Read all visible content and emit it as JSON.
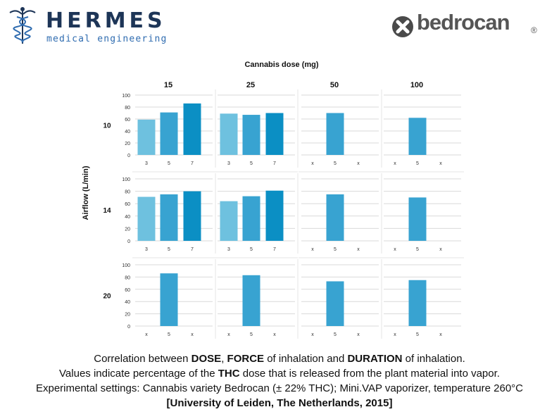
{
  "branding": {
    "hermes_title": "HERMES",
    "hermes_subtitle": "medical engineering",
    "bedrocan_name": "bedrocan",
    "registered_mark": "®"
  },
  "chart_data": {
    "type": "bar",
    "title": "Cannabis dose (mg)",
    "ylabel": "Airflow (L/min)",
    "ylim": [
      0,
      100
    ],
    "yticks": [
      0,
      20,
      40,
      60,
      80,
      100
    ],
    "grid": true,
    "columns": [
      "15",
      "25",
      "50",
      "100"
    ],
    "rows": [
      "10",
      "14",
      "20"
    ],
    "series_colors": [
      "#6ec1df",
      "#38a3d1",
      "#0b8fc4"
    ],
    "panels": [
      {
        "row": "10",
        "col": "15",
        "categories": [
          "3",
          "5",
          "7"
        ],
        "values": [
          59,
          71,
          86
        ]
      },
      {
        "row": "10",
        "col": "25",
        "categories": [
          "3",
          "5",
          "7"
        ],
        "values": [
          69,
          67,
          70
        ]
      },
      {
        "row": "10",
        "col": "50",
        "categories": [
          "x",
          "5",
          "x"
        ],
        "values": [
          null,
          70,
          null
        ]
      },
      {
        "row": "10",
        "col": "100",
        "categories": [
          "x",
          "5",
          "x"
        ],
        "values": [
          null,
          62,
          null
        ]
      },
      {
        "row": "14",
        "col": "15",
        "categories": [
          "3",
          "5",
          "7"
        ],
        "values": [
          71,
          75,
          80
        ]
      },
      {
        "row": "14",
        "col": "25",
        "categories": [
          "3",
          "5",
          "7"
        ],
        "values": [
          64,
          72,
          81
        ]
      },
      {
        "row": "14",
        "col": "50",
        "categories": [
          "x",
          "5",
          "x"
        ],
        "values": [
          null,
          75,
          null
        ]
      },
      {
        "row": "14",
        "col": "100",
        "categories": [
          "x",
          "5",
          "x"
        ],
        "values": [
          null,
          70,
          null
        ]
      },
      {
        "row": "20",
        "col": "15",
        "categories": [
          "x",
          "5",
          "x"
        ],
        "values": [
          null,
          86,
          null
        ]
      },
      {
        "row": "20",
        "col": "25",
        "categories": [
          "x",
          "5",
          "x"
        ],
        "values": [
          null,
          83,
          null
        ]
      },
      {
        "row": "20",
        "col": "50",
        "categories": [
          "x",
          "5",
          "x"
        ],
        "values": [
          null,
          73,
          null
        ]
      },
      {
        "row": "20",
        "col": "100",
        "categories": [
          "x",
          "5",
          "x"
        ],
        "values": [
          null,
          75,
          null
        ]
      }
    ]
  },
  "caption": {
    "line1": {
      "part1": "Correlation between ",
      "dose": "DOSE",
      "part2": ", ",
      "force": "FORCE",
      "part3": " of inhalation and ",
      "duration": "DURATION",
      "part4": " of inhalation."
    },
    "line2": {
      "part1": "Values indicate percentage of the ",
      "thc": "THC",
      "part2": " dose that is released from the plant material into vapor."
    },
    "line3": "Experimental settings: Cannabis variety Bedrocan (± 22% THC); Mini.VAP vaporizer, temperature 260°C",
    "line4": "[University of Leiden, The Netherlands, 2015]"
  }
}
